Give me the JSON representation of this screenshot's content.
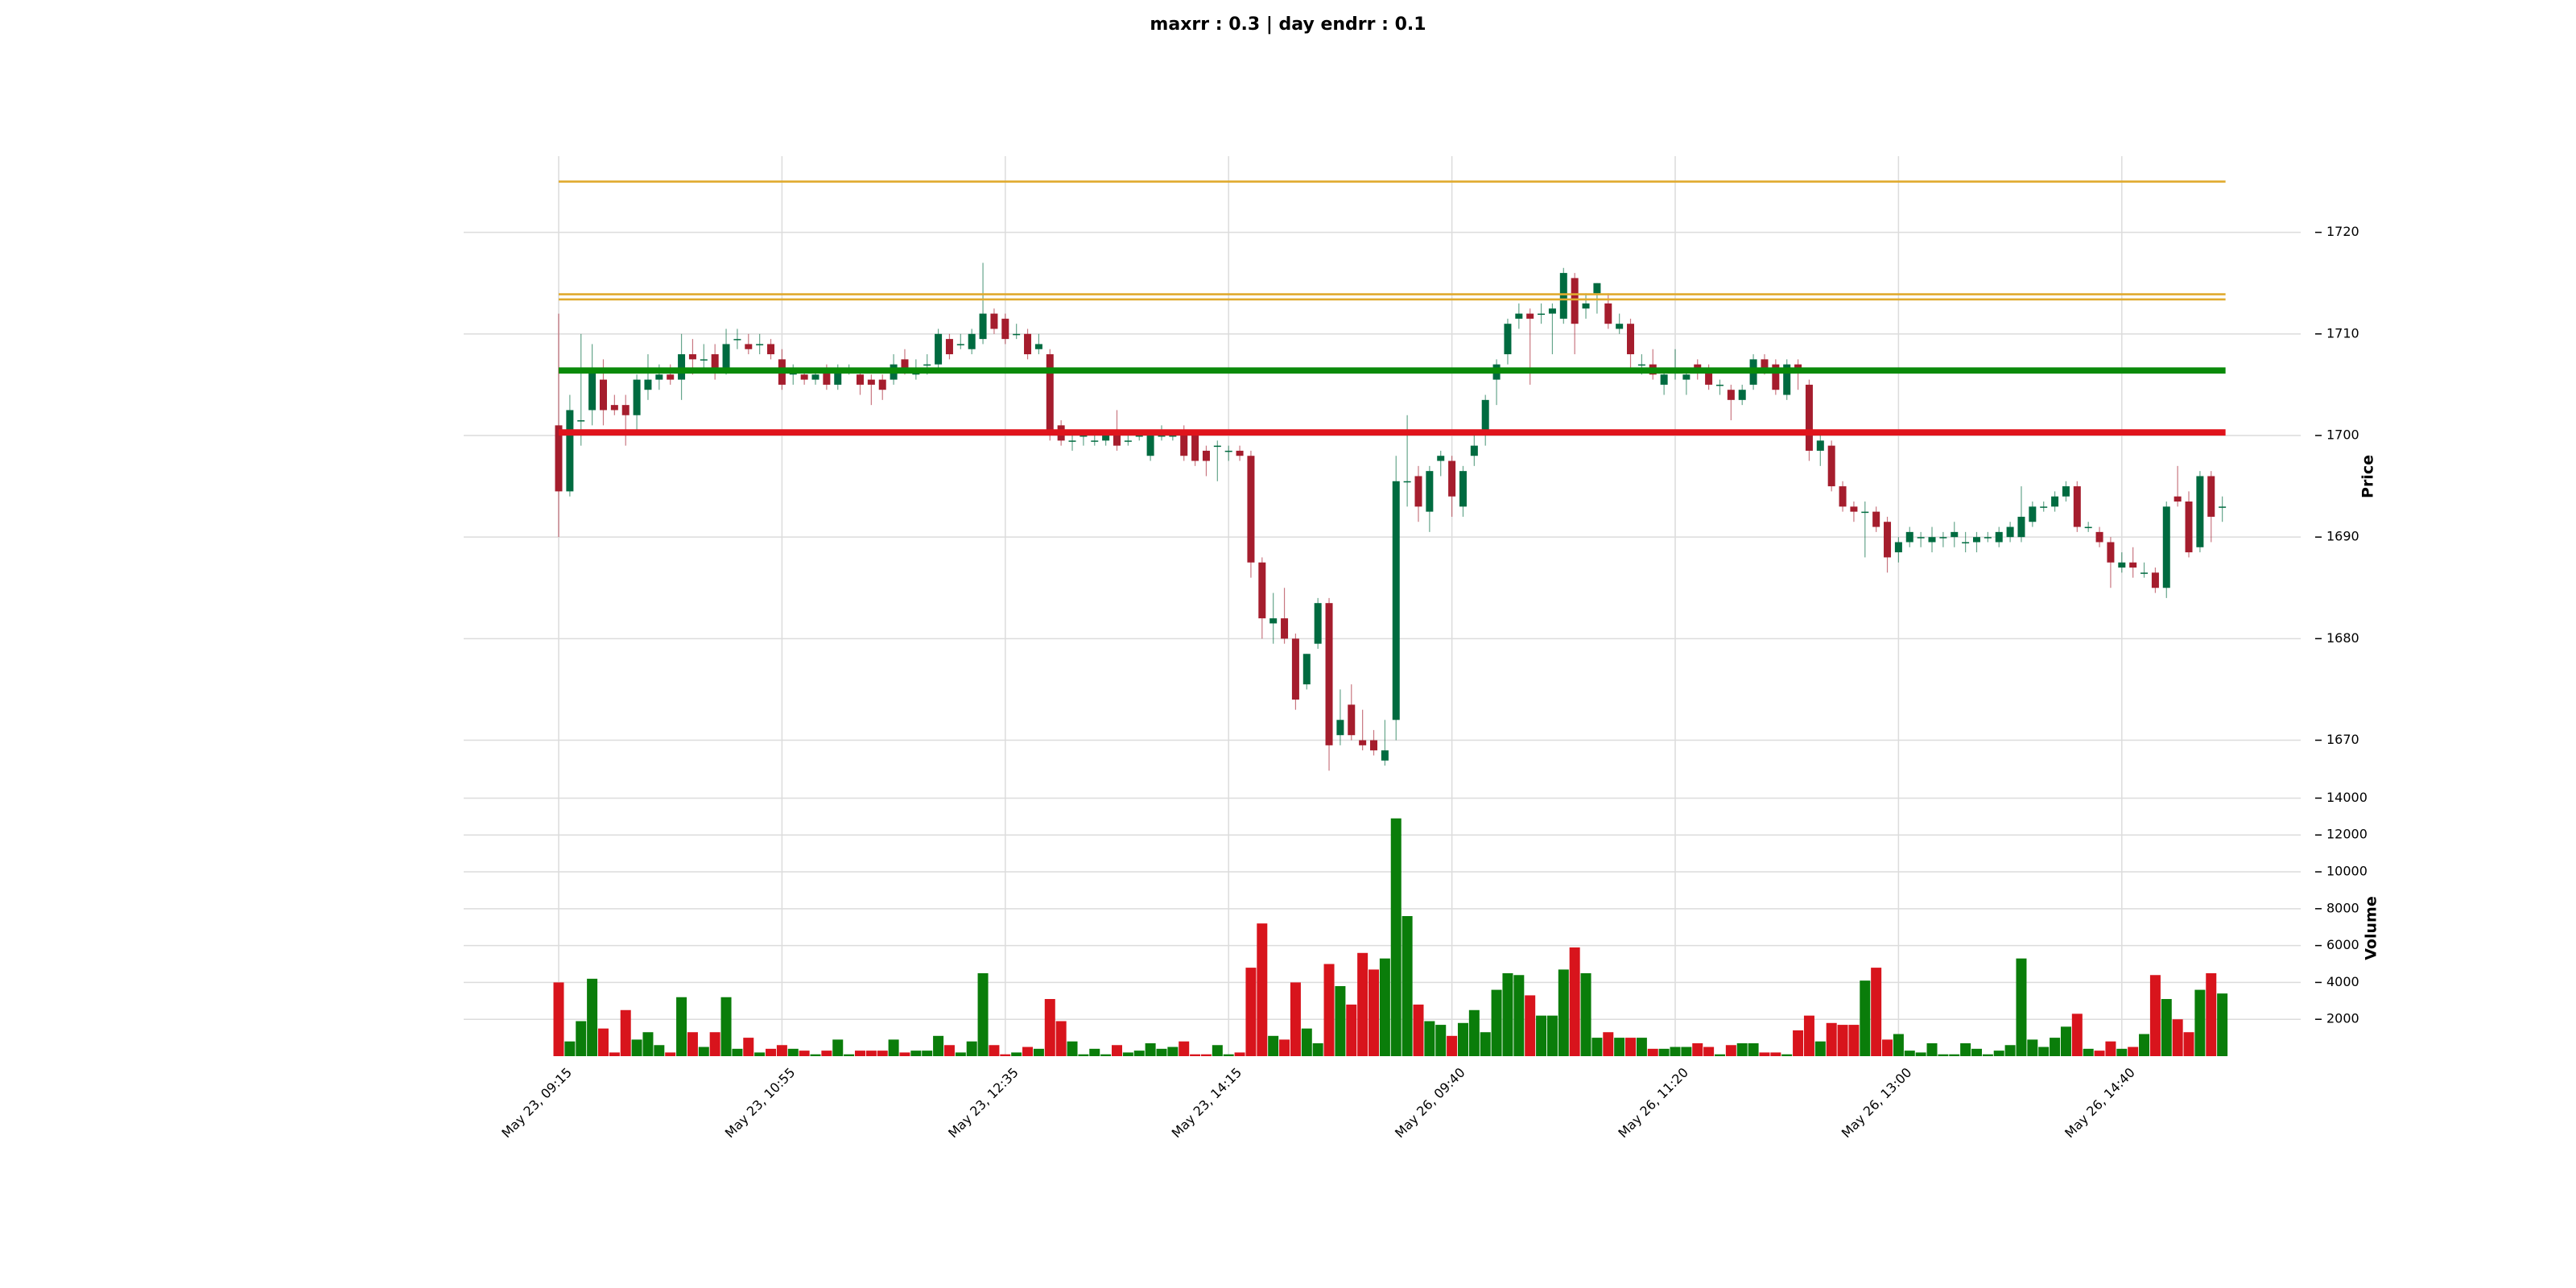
{
  "chart_data": {
    "type": "candlestick",
    "title": "maxrr : 0.3   |   day endrr : 0.1",
    "ylabel": "Price",
    "volume_label": "Volume",
    "categories": [
      "May 23, 09:15",
      null,
      null,
      null,
      null,
      null,
      null,
      null,
      null,
      null,
      null,
      null,
      null,
      null,
      null,
      null,
      null,
      null,
      null,
      null,
      "May 23, 10:55",
      null,
      null,
      null,
      null,
      null,
      null,
      null,
      null,
      null,
      null,
      null,
      null,
      null,
      null,
      null,
      null,
      null,
      null,
      null,
      "May 23, 12:35",
      null,
      null,
      null,
      null,
      null,
      null,
      null,
      null,
      null,
      null,
      null,
      null,
      null,
      null,
      null,
      null,
      null,
      null,
      null,
      "May 23, 14:15",
      null,
      null,
      null,
      null,
      null,
      null,
      null,
      null,
      null,
      null,
      null,
      null,
      null,
      null,
      null,
      null,
      null,
      null,
      null,
      "May 26, 09:40",
      null,
      null,
      null,
      null,
      null,
      null,
      null,
      null,
      null,
      null,
      null,
      null,
      null,
      null,
      null,
      null,
      null,
      null,
      null,
      "May 26, 11:20",
      null,
      null,
      null,
      null,
      null,
      null,
      null,
      null,
      null,
      null,
      null,
      null,
      null,
      null,
      null,
      null,
      null,
      null,
      null,
      "May 26, 13:00",
      null,
      null,
      null,
      null,
      null,
      null,
      null,
      null,
      null,
      null,
      null,
      null,
      null,
      null,
      null,
      null,
      null,
      null,
      null,
      "May 26, 14:40",
      null,
      null,
      null,
      null,
      null,
      null,
      null,
      null,
      null
    ],
    "open": [
      1701,
      1694.5,
      1701.5,
      1702.5,
      1705.5,
      1703,
      1703,
      1702,
      1704.5,
      1705.5,
      1706,
      1705.5,
      1708,
      1707.5,
      1708,
      1706.5,
      1709.5,
      1709,
      1709,
      1709,
      1707.5,
      1706,
      1706,
      1705.5,
      1706.5,
      1705,
      1706.5,
      1706,
      1705.5,
      1705.5,
      1705.5,
      1707.5,
      1706,
      1707,
      1707,
      1709.5,
      1709,
      1708.5,
      1709.5,
      1712,
      1711.5,
      1710,
      1710,
      1708.5,
      1708,
      1701,
      1699.5,
      1700,
      1699.5,
      1699.5,
      1700,
      1699.5,
      1700,
      1698,
      1700,
      1700,
      1700,
      1700,
      1698.5,
      1699,
      1698.5,
      1698.5,
      1698,
      1687.5,
      1681.5,
      1682,
      1680,
      1675.5,
      1679.5,
      1683.5,
      1670.5,
      1673.5,
      1670,
      1670,
      1668,
      1672,
      1695.5,
      1696,
      1692.5,
      1697.5,
      1697.5,
      1693,
      1698,
      1700,
      1705.5,
      1708,
      1711.5,
      1712,
      1712,
      1712,
      1711.5,
      1715.5,
      1712.5,
      1714,
      1713,
      1710.5,
      1711,
      1707,
      1707,
      1705,
      1706.5,
      1705.5,
      1707,
      1706.5,
      1705,
      1704.5,
      1703.5,
      1705,
      1707.5,
      1707,
      1704,
      1707,
      1705,
      1698.5,
      1699,
      1695,
      1693,
      1692.5,
      1692.5,
      1691.5,
      1688.5,
      1689.5,
      1690,
      1689.5,
      1690,
      1690,
      1689.5,
      1689.5,
      1690,
      1689.5,
      1690,
      1690,
      1691.5,
      1693,
      1693,
      1694,
      1695,
      1691,
      1690.5,
      1689.5,
      1687,
      1687.5,
      1686.5,
      1686.5,
      1685,
      1694,
      1693.5,
      1689,
      1696,
      1693
    ],
    "high": [
      1712,
      1704,
      1710,
      1709,
      1707.5,
      1704,
      1704,
      1706,
      1708,
      1707,
      1707,
      1710,
      1709.5,
      1709,
      1709,
      1710.5,
      1710.5,
      1710,
      1710,
      1709.5,
      1708.5,
      1707,
      1706.5,
      1706.5,
      1707,
      1707,
      1707,
      1706.5,
      1706,
      1706,
      1708,
      1708.5,
      1707.5,
      1708,
      1710.5,
      1710,
      1710,
      1710.5,
      1717,
      1712.5,
      1712,
      1711,
      1710.5,
      1710,
      1708.5,
      1701.5,
      1700.5,
      1700.5,
      1700.5,
      1700.5,
      1702.5,
      1700.5,
      1700.5,
      1700.5,
      1701,
      1700.5,
      1701,
      1700.5,
      1699,
      1699.5,
      1699,
      1699,
      1698.5,
      1688,
      1684.5,
      1685,
      1680.5,
      1678.5,
      1684,
      1684,
      1675,
      1675.5,
      1673,
      1671,
      1672,
      1698,
      1702,
      1697,
      1697,
      1698.5,
      1698,
      1697,
      1700,
      1704,
      1707.5,
      1711.5,
      1713,
      1712.5,
      1713,
      1713,
      1716.5,
      1716,
      1714,
      1715,
      1714,
      1712,
      1711.5,
      1708,
      1708.5,
      1706.5,
      1708.5,
      1706.5,
      1707.5,
      1707,
      1705.5,
      1705,
      1705,
      1708,
      1708,
      1707.5,
      1707.5,
      1707.5,
      1705.5,
      1700,
      1699.5,
      1695.5,
      1693.5,
      1693.5,
      1693,
      1692,
      1690,
      1691,
      1690.5,
      1691,
      1690.5,
      1691.5,
      1690.5,
      1690.5,
      1690.5,
      1691,
      1691.5,
      1695,
      1693.5,
      1693.5,
      1694.5,
      1695.5,
      1695.5,
      1691.5,
      1691,
      1690,
      1688.5,
      1689,
      1687.5,
      1687,
      1693.5,
      1697,
      1694.5,
      1696.5,
      1696.5,
      1694
    ],
    "low": [
      1690,
      1694,
      1699,
      1701,
      1701,
      1702,
      1699,
      1700.5,
      1703.5,
      1704.5,
      1705,
      1703.5,
      1706,
      1706.5,
      1705.5,
      1706,
      1708.5,
      1708,
      1708,
      1707.5,
      1704.5,
      1705,
      1705,
      1705,
      1704.5,
      1704.5,
      1706,
      1704,
      1703,
      1703.5,
      1705,
      1706,
      1705.5,
      1706,
      1706.5,
      1707.5,
      1708.5,
      1708,
      1709,
      1710,
      1709,
      1709.5,
      1707.5,
      1708,
      1699.5,
      1699,
      1698.5,
      1699,
      1699,
      1699,
      1698.5,
      1699,
      1699.5,
      1697.5,
      1699.5,
      1699.5,
      1697.5,
      1697,
      1696,
      1695.5,
      1697.5,
      1697.5,
      1686,
      1680,
      1679.5,
      1679.5,
      1673,
      1675,
      1679,
      1667,
      1669.5,
      1670,
      1669,
      1668.5,
      1667.5,
      1670,
      1693,
      1691.5,
      1690.5,
      1696,
      1692,
      1692,
      1697,
      1699,
      1703,
      1707,
      1710.5,
      1705,
      1711,
      1708,
      1711,
      1708,
      1711.5,
      1712,
      1710.5,
      1710,
      1706.5,
      1706,
      1705.5,
      1704,
      1705.5,
      1704,
      1705.5,
      1704.5,
      1704,
      1701.5,
      1703,
      1704.5,
      1706,
      1704,
      1703.5,
      1704.5,
      1697.5,
      1697,
      1694.5,
      1692.5,
      1691.5,
      1688,
      1690.5,
      1686.5,
      1687.5,
      1689,
      1689,
      1688.5,
      1689,
      1689,
      1688.5,
      1688.5,
      1689.5,
      1689,
      1689.5,
      1689.5,
      1691,
      1692.5,
      1692.5,
      1693.5,
      1690.5,
      1690.5,
      1689,
      1685,
      1686.5,
      1686,
      1686,
      1684.5,
      1684,
      1693,
      1688,
      1688.5,
      1689.5,
      1691.5
    ],
    "close": [
      1694.5,
      1702.5,
      1701.5,
      1706.5,
      1702.5,
      1702.5,
      1702,
      1705.5,
      1705.5,
      1706,
      1705.5,
      1708,
      1707.5,
      1707.5,
      1706.5,
      1709,
      1709.5,
      1708.5,
      1709,
      1708,
      1705,
      1706.5,
      1705.5,
      1706,
      1705,
      1706.5,
      1706.5,
      1705,
      1705,
      1704.5,
      1707,
      1706.5,
      1706.5,
      1707,
      1710,
      1708,
      1709,
      1710,
      1712,
      1710.5,
      1709.5,
      1710,
      1708,
      1709,
      1700,
      1699.5,
      1699.5,
      1700,
      1699.5,
      1700,
      1699,
      1699.5,
      1700,
      1700,
      1700,
      1700,
      1698,
      1697.5,
      1697.5,
      1699,
      1698.5,
      1698,
      1687.5,
      1682,
      1682,
      1680,
      1674,
      1678.5,
      1683.5,
      1669.5,
      1672,
      1670.5,
      1669.5,
      1669,
      1669,
      1695.5,
      1695.5,
      1693,
      1696.5,
      1698,
      1694,
      1696.5,
      1699,
      1703.5,
      1707,
      1711,
      1712,
      1711.5,
      1712,
      1712.5,
      1716,
      1711,
      1713,
      1715,
      1711,
      1711,
      1708,
      1707,
      1706,
      1706,
      1706.5,
      1706,
      1706.5,
      1705,
      1705,
      1703.5,
      1704.5,
      1707.5,
      1706.5,
      1704.5,
      1707,
      1706.5,
      1698.5,
      1699.5,
      1695,
      1693,
      1692.5,
      1692.5,
      1691,
      1688,
      1689.5,
      1690.5,
      1690,
      1690,
      1690,
      1690.5,
      1689.5,
      1690,
      1690,
      1690.5,
      1691,
      1692,
      1693,
      1693,
      1694,
      1695,
      1691,
      1691,
      1689.5,
      1687.5,
      1687.5,
      1687,
      1686.5,
      1685,
      1693,
      1693.5,
      1688.5,
      1696,
      1692,
      1693
    ],
    "volume": [
      4000,
      800,
      1900,
      4200,
      1500,
      200,
      2500,
      900,
      1300,
      600,
      200,
      3200,
      1300,
      500,
      1300,
      3200,
      400,
      1000,
      200,
      400,
      600,
      400,
      300,
      100,
      300,
      900,
      100,
      300,
      300,
      300,
      900,
      200,
      300,
      300,
      1100,
      600,
      200,
      800,
      4500,
      600,
      100,
      200,
      500,
      400,
      3100,
      1900,
      800,
      100,
      400,
      100,
      600,
      200,
      300,
      700,
      400,
      500,
      800,
      100,
      100,
      600,
      100,
      200,
      4800,
      7200,
      1100,
      900,
      4000,
      1500,
      700,
      5000,
      3800,
      2800,
      5600,
      4700,
      5300,
      12900,
      7600,
      2800,
      1900,
      1700,
      1100,
      1800,
      2500,
      1300,
      3600,
      4500,
      4400,
      3300,
      2200,
      2200,
      4700,
      5900,
      4500,
      1000,
      1300,
      1000,
      1000,
      1000,
      400,
      400,
      500,
      500,
      700,
      500,
      100,
      600,
      700,
      700,
      200,
      200,
      100,
      1400,
      2200,
      800,
      1800,
      1700,
      1700,
      4100,
      4800,
      900,
      1200,
      300,
      200,
      700,
      100,
      100,
      700,
      400,
      100,
      300,
      600,
      5300,
      900,
      500,
      1000,
      1600,
      2300,
      400,
      300,
      800,
      400,
      500,
      1200,
      4400,
      3100,
      2000,
      1300,
      3600,
      4500,
      3400
    ],
    "up_color": "#006b40",
    "down_color": "#a51d2d",
    "volume_up_color": "#0a7d0a",
    "volume_down_color": "#d8141c",
    "ylim": [
      1666,
      1727.5
    ],
    "yticks": [
      1670,
      1680,
      1690,
      1700,
      1710,
      1720
    ],
    "volume_ylim": [
      0,
      14500
    ],
    "volume_yticks": [
      2000,
      4000,
      6000,
      8000,
      10000,
      12000,
      14000
    ],
    "grid": true,
    "hlines": [
      {
        "value": 1725,
        "color": "#e0aa2e",
        "linewidth": 1
      },
      {
        "value": 1713.9,
        "color": "#e0aa2e",
        "linewidth": 1
      },
      {
        "value": 1713.4,
        "color": "#e0aa2e",
        "linewidth": 1
      },
      {
        "value": 1706.4,
        "color": "#0a8a0a",
        "linewidth": 3
      },
      {
        "value": 1700.3,
        "color": "#e0141c",
        "linewidth": 3
      }
    ]
  }
}
